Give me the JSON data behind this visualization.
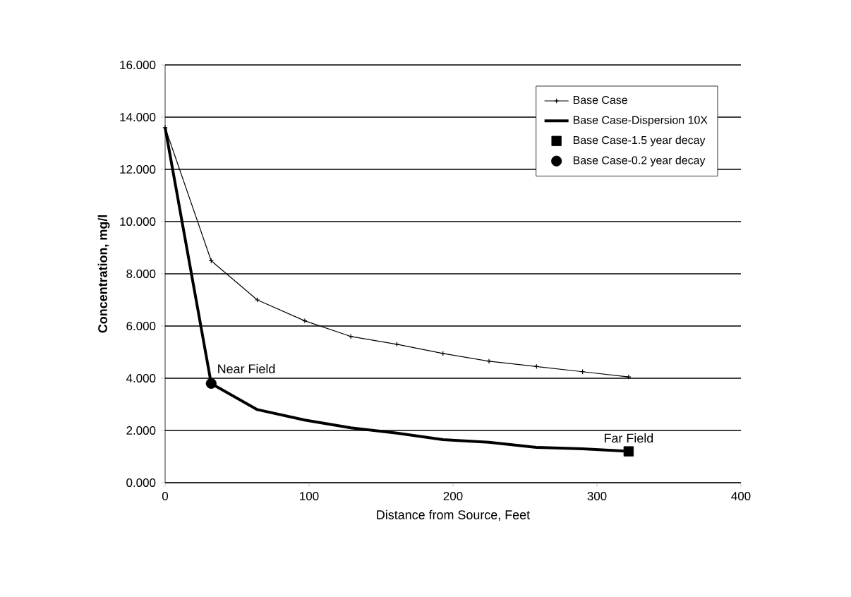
{
  "chart_data": {
    "type": "line",
    "xlabel": "Distance from Source, Feet",
    "ylabel": "Concentration, mg/l",
    "xlim": [
      0,
      400
    ],
    "xticks": [
      0,
      100,
      200,
      300,
      400
    ],
    "ylim": [
      0,
      16
    ],
    "yticks": [
      {
        "value": 0,
        "label": "0.000"
      },
      {
        "value": 2,
        "label": "2.000"
      },
      {
        "value": 4,
        "label": "4.000"
      },
      {
        "value": 6,
        "label": "6.000"
      },
      {
        "value": 8,
        "label": "8.000"
      },
      {
        "value": 10,
        "label": "10.000"
      },
      {
        "value": 12,
        "label": "12.000"
      },
      {
        "value": 14,
        "label": "14.000"
      },
      {
        "value": 16,
        "label": "16.000"
      }
    ],
    "grid": "y",
    "legend": "top right",
    "series": [
      {
        "name": "Base Case",
        "color": "#000000",
        "marker": "cross",
        "x": [
          0,
          32,
          64,
          97,
          129,
          161,
          193,
          225,
          258,
          290,
          322
        ],
        "values": [
          13.6,
          8.5,
          7.0,
          6.2,
          5.6,
          5.3,
          4.95,
          4.65,
          4.45,
          4.25,
          4.05
        ]
      },
      {
        "name": "Base Case-Dispersion 10X",
        "color": "#000000",
        "marker": "none",
        "x": [
          0,
          32,
          64,
          97,
          129,
          161,
          193,
          225,
          258,
          290,
          322
        ],
        "values": [
          13.6,
          3.8,
          2.8,
          2.4,
          2.1,
          1.9,
          1.65,
          1.55,
          1.35,
          1.3,
          1.2
        ]
      },
      {
        "name": "Base Case-1.5 year decay",
        "type": "scatter",
        "color": "#000000",
        "marker": "square",
        "x": [
          322
        ],
        "values": [
          1.2
        ]
      },
      {
        "name": "Base Case-0.2 year decay",
        "type": "scatter",
        "color": "#000000",
        "marker": "circle",
        "x": [
          32
        ],
        "values": [
          3.8
        ]
      }
    ],
    "annotations": [
      {
        "text": "Near Field",
        "x": 32,
        "y": 3.8
      },
      {
        "text": "Far Field",
        "x": 322,
        "y": 1.2
      }
    ]
  }
}
